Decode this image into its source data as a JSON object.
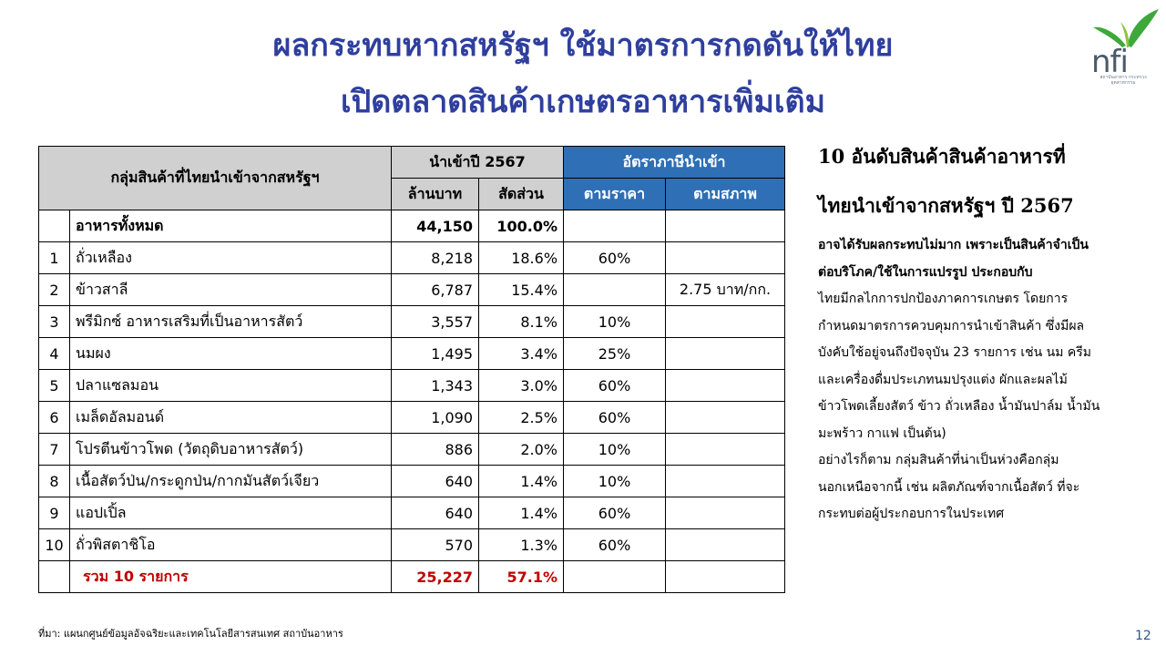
{
  "title": {
    "line1": "ผลกระทบหากสหรัฐฯ ใช้มาตรการกดดันให้ไทย",
    "line2": "เปิดตลาดสินค้าเกษตรอาหารเพิ่มเติม"
  },
  "logo": {
    "text": "nfi",
    "subtitle": "สถาบันอาหาร กระทรวงอุตสาหกรรม"
  },
  "table": {
    "header": {
      "group": "กลุ่มสินค้าที่ไทยนำเข้าจากสหรัฐฯ",
      "import_year": "นำเข้าปี 2567",
      "tariff": "อัตราภาษีนำเข้า",
      "value": "ล้านบาท",
      "share": "สัดส่วน",
      "ad_valorem": "ตามราคา",
      "specific": "ตามสภาพ"
    },
    "total_all": {
      "label": "อาหารทั้งหมด",
      "value": "44,150",
      "share": "100.0%"
    },
    "rows": [
      {
        "no": "1",
        "name": "ถั่วเหลือง",
        "value": "8,218",
        "share": "18.6%",
        "ad_valorem": "60%",
        "specific": ""
      },
      {
        "no": "2",
        "name": "ข้าวสาลี",
        "value": "6,787",
        "share": "15.4%",
        "ad_valorem": "",
        "specific": "2.75 บาท/กก."
      },
      {
        "no": "3",
        "name": "พรีมิกซ์ อาหารเสริมที่เป็นอาหารสัตว์",
        "value": "3,557",
        "share": "8.1%",
        "ad_valorem": "10%",
        "specific": ""
      },
      {
        "no": "4",
        "name": "นมผง",
        "value": "1,495",
        "share": "3.4%",
        "ad_valorem": "25%",
        "specific": ""
      },
      {
        "no": "5",
        "name": "ปลาแซลมอน",
        "value": "1,343",
        "share": "3.0%",
        "ad_valorem": "60%",
        "specific": ""
      },
      {
        "no": "6",
        "name": "เมล็ดอัลมอนด์",
        "value": "1,090",
        "share": "2.5%",
        "ad_valorem": "60%",
        "specific": ""
      },
      {
        "no": "7",
        "name": "โปรตีนข้าวโพด (วัตถุดิบอาหารสัตว์)",
        "value": "886",
        "share": "2.0%",
        "ad_valorem": "10%",
        "specific": ""
      },
      {
        "no": "8",
        "name": "เนื้อสัตว์ป่น/กระดูกป่น/กากมันสัตว์เจียว",
        "value": "640",
        "share": "1.4%",
        "ad_valorem": "10%",
        "specific": ""
      },
      {
        "no": "9",
        "name": "แอปเปิ้ล",
        "value": "640",
        "share": "1.4%",
        "ad_valorem": "60%",
        "specific": ""
      },
      {
        "no": "10",
        "name": "ถั่วพิสตาชิโอ",
        "value": "570",
        "share": "1.3%",
        "ad_valorem": "60%",
        "specific": ""
      }
    ],
    "total_top10": {
      "label": "รวม 10 รายการ",
      "value": "25,227",
      "share": "57.1%"
    }
  },
  "side": {
    "title_line1": "10 อันดับสินค้าสินค้าอาหารที่",
    "title_line2": "ไทยนำเข้าจากสหรัฐฯ ปี 2567",
    "body_lines": [
      "อาจได้รับผลกระทบไม่มาก เพราะเป็นสินค้าจำเป็น",
      "ต่อบริโภค/ใช้ในการแปรรูป ประกอบกับ",
      "ไทยมีกลไกการปกป้องภาคการเกษตร โดยการ",
      "กำหนดมาตรการควบคุมการนำเข้าสินค้า ซึ่งมีผล",
      "บังคับใช้อยู่จนถึงปัจจุบัน 23 รายการ เช่น นม ครีม",
      "และเครื่องดื่มประเภทนมปรุงแต่ง ผักและผลไม้",
      "ข้าวโพดเลี้ยงสัตว์ ข้าว ถั่วเหลือง น้ำมันปาล์ม น้ำมัน",
      "มะพร้าว กาแฟ เป็นต้น)",
      "อย่างไรก็ตาม กลุ่มสินค้าที่น่าเป็นห่วงคือกลุ่ม",
      "นอกเหนือจากนี้ เช่น ผลิตภัณฑ์จากเนื้อสัตว์ ที่จะ",
      "กระทบต่อผู้ประกอบการในประเทศ"
    ]
  },
  "source": "ที่มา: แผนกศูนย์ข้อมูลอัจฉริยะและเทคโนโลยีสารสนเทศ สถาบันอาหาร",
  "page_number": "12",
  "colors": {
    "title": "#2f3f9e",
    "header_blue": "#2e6fb5",
    "header_grey": "#d0d0d0",
    "total_red": "#c00000",
    "logo_green": "#3ea83a"
  }
}
